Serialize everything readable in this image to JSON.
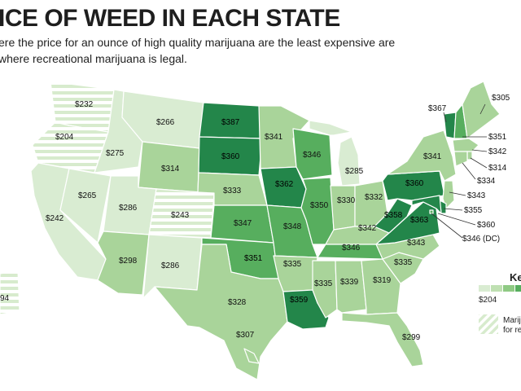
{
  "header": {
    "title": "ICE OF WEED IN EACH STATE",
    "subtitle": "ere the price for an ounce of high quality marijuana are the least expensive are where recreational marijuana is legal."
  },
  "colors": {
    "light": "#d9ecd2",
    "mid": "#a9d49a",
    "dark": "#57ae5e",
    "darkest": "#23864a",
    "legal_hatch": "#e4f0dd",
    "border": "#ffffff"
  },
  "states": [
    {
      "id": "WA",
      "price": "$232",
      "legal": true
    },
    {
      "id": "OR",
      "price": "$204",
      "legal": true
    },
    {
      "id": "CA",
      "price": "$242"
    },
    {
      "id": "NV",
      "price": "$265"
    },
    {
      "id": "ID",
      "price": "$275"
    },
    {
      "id": "MT",
      "price": "$266"
    },
    {
      "id": "WY",
      "price": "$314"
    },
    {
      "id": "UT",
      "price": "$286"
    },
    {
      "id": "CO",
      "price": "$243",
      "legal": true
    },
    {
      "id": "AZ",
      "price": "$298"
    },
    {
      "id": "NM",
      "price": "$286"
    },
    {
      "id": "ND",
      "price": "$387"
    },
    {
      "id": "SD",
      "price": "$360"
    },
    {
      "id": "NE",
      "price": "$333"
    },
    {
      "id": "KS",
      "price": "$347"
    },
    {
      "id": "OK",
      "price": "$351"
    },
    {
      "id": "TX",
      "price": "$328"
    },
    {
      "id": "MN",
      "price": "$341"
    },
    {
      "id": "IA",
      "price": "$362"
    },
    {
      "id": "MO",
      "price": "$348"
    },
    {
      "id": "AR",
      "price": "$335"
    },
    {
      "id": "LA",
      "price": "$359"
    },
    {
      "id": "WI",
      "price": "$346"
    },
    {
      "id": "IL",
      "price": "$350"
    },
    {
      "id": "MI",
      "price": "$285"
    },
    {
      "id": "IN",
      "price": "$330"
    },
    {
      "id": "OH",
      "price": "$332"
    },
    {
      "id": "KY",
      "price": "$342"
    },
    {
      "id": "TN",
      "price": "$346"
    },
    {
      "id": "MS",
      "price": "$335"
    },
    {
      "id": "AL",
      "price": "$339"
    },
    {
      "id": "GA",
      "price": "$319"
    },
    {
      "id": "FL",
      "price": "$299"
    },
    {
      "id": "SC",
      "price": "$335"
    },
    {
      "id": "NC",
      "price": "$343"
    },
    {
      "id": "VA",
      "price": "$363"
    },
    {
      "id": "WV",
      "price": "$358"
    },
    {
      "id": "PA",
      "price": "$360"
    },
    {
      "id": "NY",
      "price": "$341"
    },
    {
      "id": "VT",
      "price": "$367"
    },
    {
      "id": "ME",
      "price": "$305"
    },
    {
      "id": "NH",
      "price": "$351"
    },
    {
      "id": "MA",
      "price": "$342"
    },
    {
      "id": "RI",
      "price": "$314"
    },
    {
      "id": "CT",
      "price": "$334"
    },
    {
      "id": "NJ",
      "price": "$343"
    },
    {
      "id": "DE",
      "price": "$355"
    },
    {
      "id": "MD",
      "price": "$360"
    },
    {
      "id": "DC",
      "price": "$346 (DC)"
    },
    {
      "id": "AK",
      "price": "94",
      "legal": true
    },
    {
      "id": "HI",
      "price": "$307"
    }
  ],
  "legend": {
    "title": "Ke",
    "min_label": "$204",
    "legal_label_1": "Mariju",
    "legal_label_2": "for re"
  }
}
